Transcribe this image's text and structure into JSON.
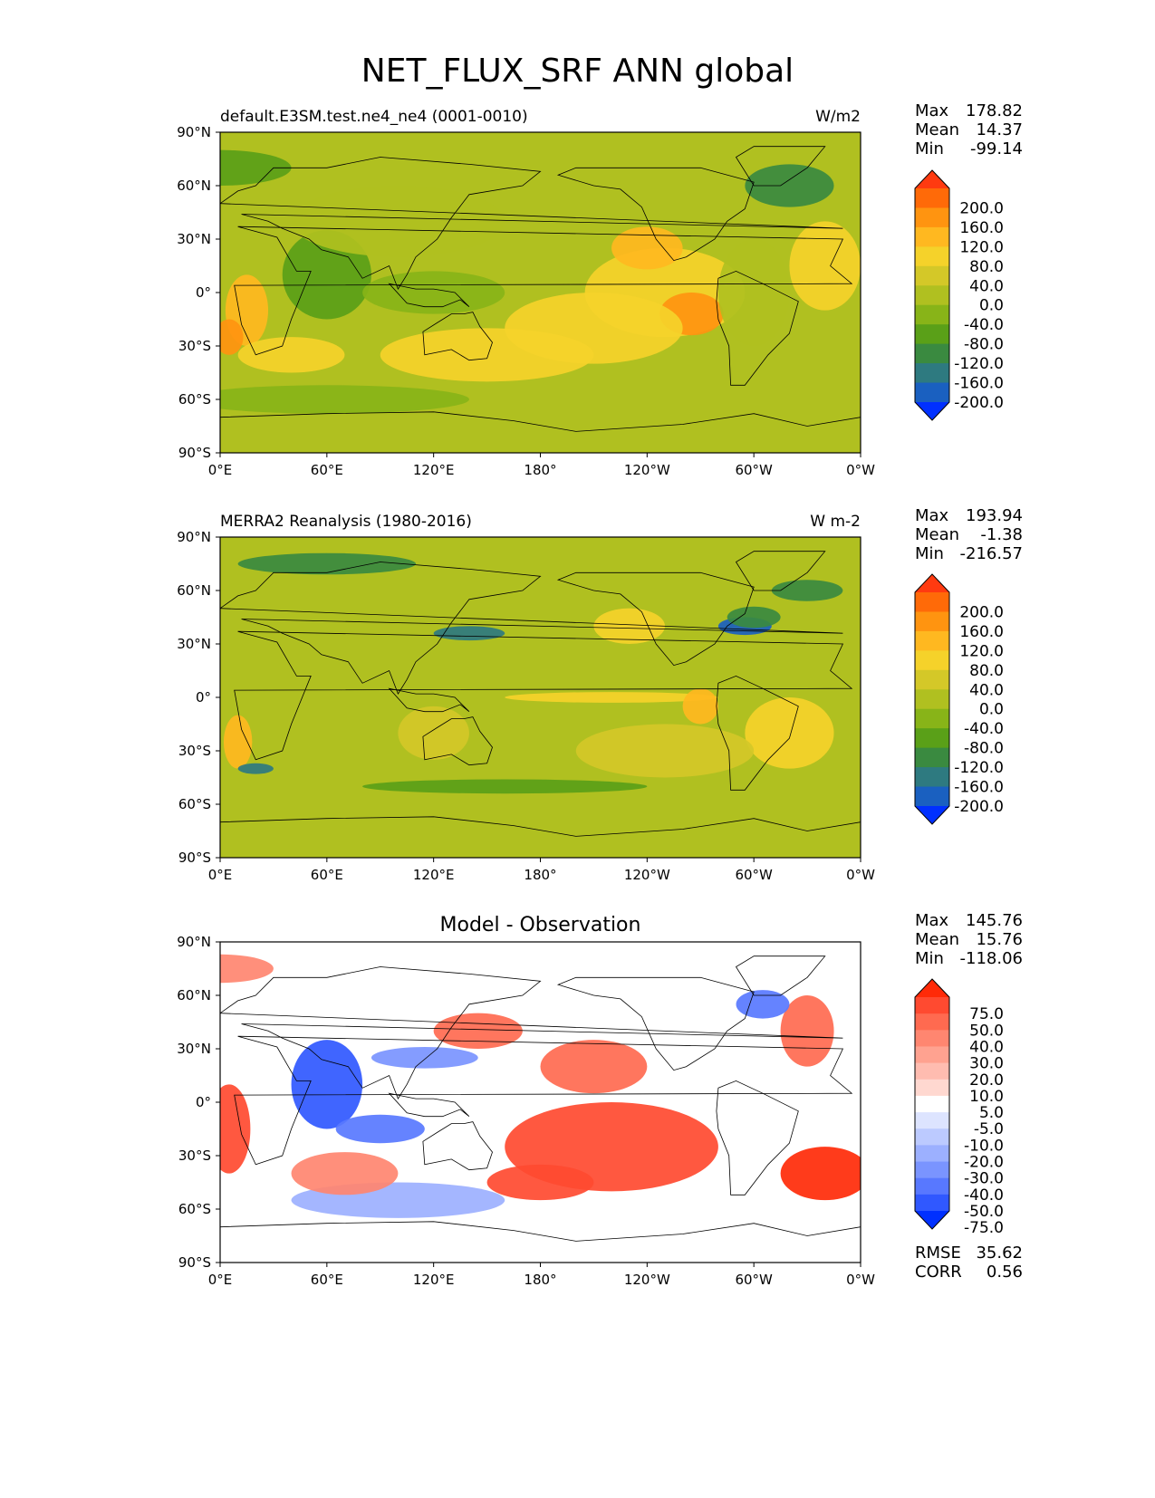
{
  "title": "NET_FLUX_SRF ANN global",
  "lon_ticks": [
    "0°E",
    "60°E",
    "120°E",
    "180°",
    "120°W",
    "60°W",
    "0°W"
  ],
  "lat_ticks": [
    "90°N",
    "60°N",
    "30°N",
    "0°",
    "30°S",
    "60°S",
    "90°S"
  ],
  "panels": [
    {
      "left_title": "default.E3SM.test.ne4_ne4 (0001-0010)",
      "center_title": "",
      "units": "W/m2",
      "stats": {
        "max_label": "Max",
        "max": "178.82",
        "mean_label": "Mean",
        "mean": "14.37",
        "min_label": "Min",
        "min": "-99.14"
      },
      "colorbar": {
        "levels": [
          "200.0",
          "160.0",
          "120.0",
          "80.0",
          "40.0",
          "0.0",
          "-40.0",
          "-80.0",
          "-120.0",
          "-160.0",
          "-200.0"
        ],
        "colors": [
          "#ff3a10",
          "#ff6a08",
          "#ff9410",
          "#ffb820",
          "#f5d22a",
          "#d4c828",
          "#b0c020",
          "#88b418",
          "#5aa018",
          "#3a8a40",
          "#2e7a80",
          "#1a60c0",
          "#0030ff"
        ]
      }
    },
    {
      "left_title": "MERRA2 Reanalysis (1980-2016)",
      "center_title": "",
      "units": "W m-2",
      "stats": {
        "max_label": "Max",
        "max": "193.94",
        "mean_label": "Mean",
        "mean": "-1.38",
        "min_label": "Min",
        "min": "-216.57"
      },
      "colorbar": {
        "levels": [
          "200.0",
          "160.0",
          "120.0",
          "80.0",
          "40.0",
          "0.0",
          "-40.0",
          "-80.0",
          "-120.0",
          "-160.0",
          "-200.0"
        ],
        "colors": [
          "#ff3a10",
          "#ff6a08",
          "#ff9410",
          "#ffb820",
          "#f5d22a",
          "#d4c828",
          "#b0c020",
          "#88b418",
          "#5aa018",
          "#3a8a40",
          "#2e7a80",
          "#1a60c0",
          "#0030ff"
        ]
      }
    },
    {
      "left_title": "",
      "center_title": "Model - Observation",
      "units": "",
      "stats": {
        "max_label": "Max",
        "max": "145.76",
        "mean_label": "Mean",
        "mean": "15.76",
        "min_label": "Min",
        "min": "-118.06"
      },
      "extra_stats": {
        "rmse_label": "RMSE",
        "rmse": "35.62",
        "corr_label": "CORR",
        "corr": "0.56"
      },
      "colorbar": {
        "levels": [
          "75.0",
          "50.0",
          "40.0",
          "30.0",
          "20.0",
          "10.0",
          "5.0",
          "-5.0",
          "-10.0",
          "-20.0",
          "-30.0",
          "-40.0",
          "-50.0",
          "-75.0"
        ],
        "colors": [
          "#ff2a08",
          "#ff4a30",
          "#ff6a50",
          "#ff8670",
          "#ffa290",
          "#ffbcb0",
          "#ffd8d0",
          "#ffffff",
          "#dde4ff",
          "#bccaff",
          "#9cb0ff",
          "#7a94ff",
          "#5878ff",
          "#3058ff",
          "#0030ff"
        ]
      }
    }
  ],
  "chart_data": [
    {
      "type": "heatmap",
      "title": "default.E3SM.test.ne4_ne4 (0001-0010)",
      "units": "W/m2",
      "xlabel": "",
      "ylabel": "",
      "xlim": [
        0,
        360
      ],
      "ylim": [
        -90,
        90
      ],
      "stats": {
        "max": 178.82,
        "mean": 14.37,
        "min": -99.14
      },
      "contour_levels": [
        -200,
        -160,
        -120,
        -80,
        -40,
        0,
        40,
        80,
        120,
        160,
        200
      ]
    },
    {
      "type": "heatmap",
      "title": "MERRA2 Reanalysis (1980-2016)",
      "units": "W m-2",
      "xlabel": "",
      "ylabel": "",
      "xlim": [
        0,
        360
      ],
      "ylim": [
        -90,
        90
      ],
      "stats": {
        "max": 193.94,
        "mean": -1.38,
        "min": -216.57
      },
      "contour_levels": [
        -200,
        -160,
        -120,
        -80,
        -40,
        0,
        40,
        80,
        120,
        160,
        200
      ]
    },
    {
      "type": "heatmap",
      "title": "Model - Observation",
      "units": "",
      "xlabel": "",
      "ylabel": "",
      "xlim": [
        0,
        360
      ],
      "ylim": [
        -90,
        90
      ],
      "stats": {
        "max": 145.76,
        "mean": 15.76,
        "min": -118.06,
        "rmse": 35.62,
        "corr": 0.56
      },
      "contour_levels": [
        -75,
        -50,
        -40,
        -30,
        -20,
        -10,
        -5,
        5,
        10,
        20,
        30,
        40,
        50,
        75
      ]
    }
  ]
}
